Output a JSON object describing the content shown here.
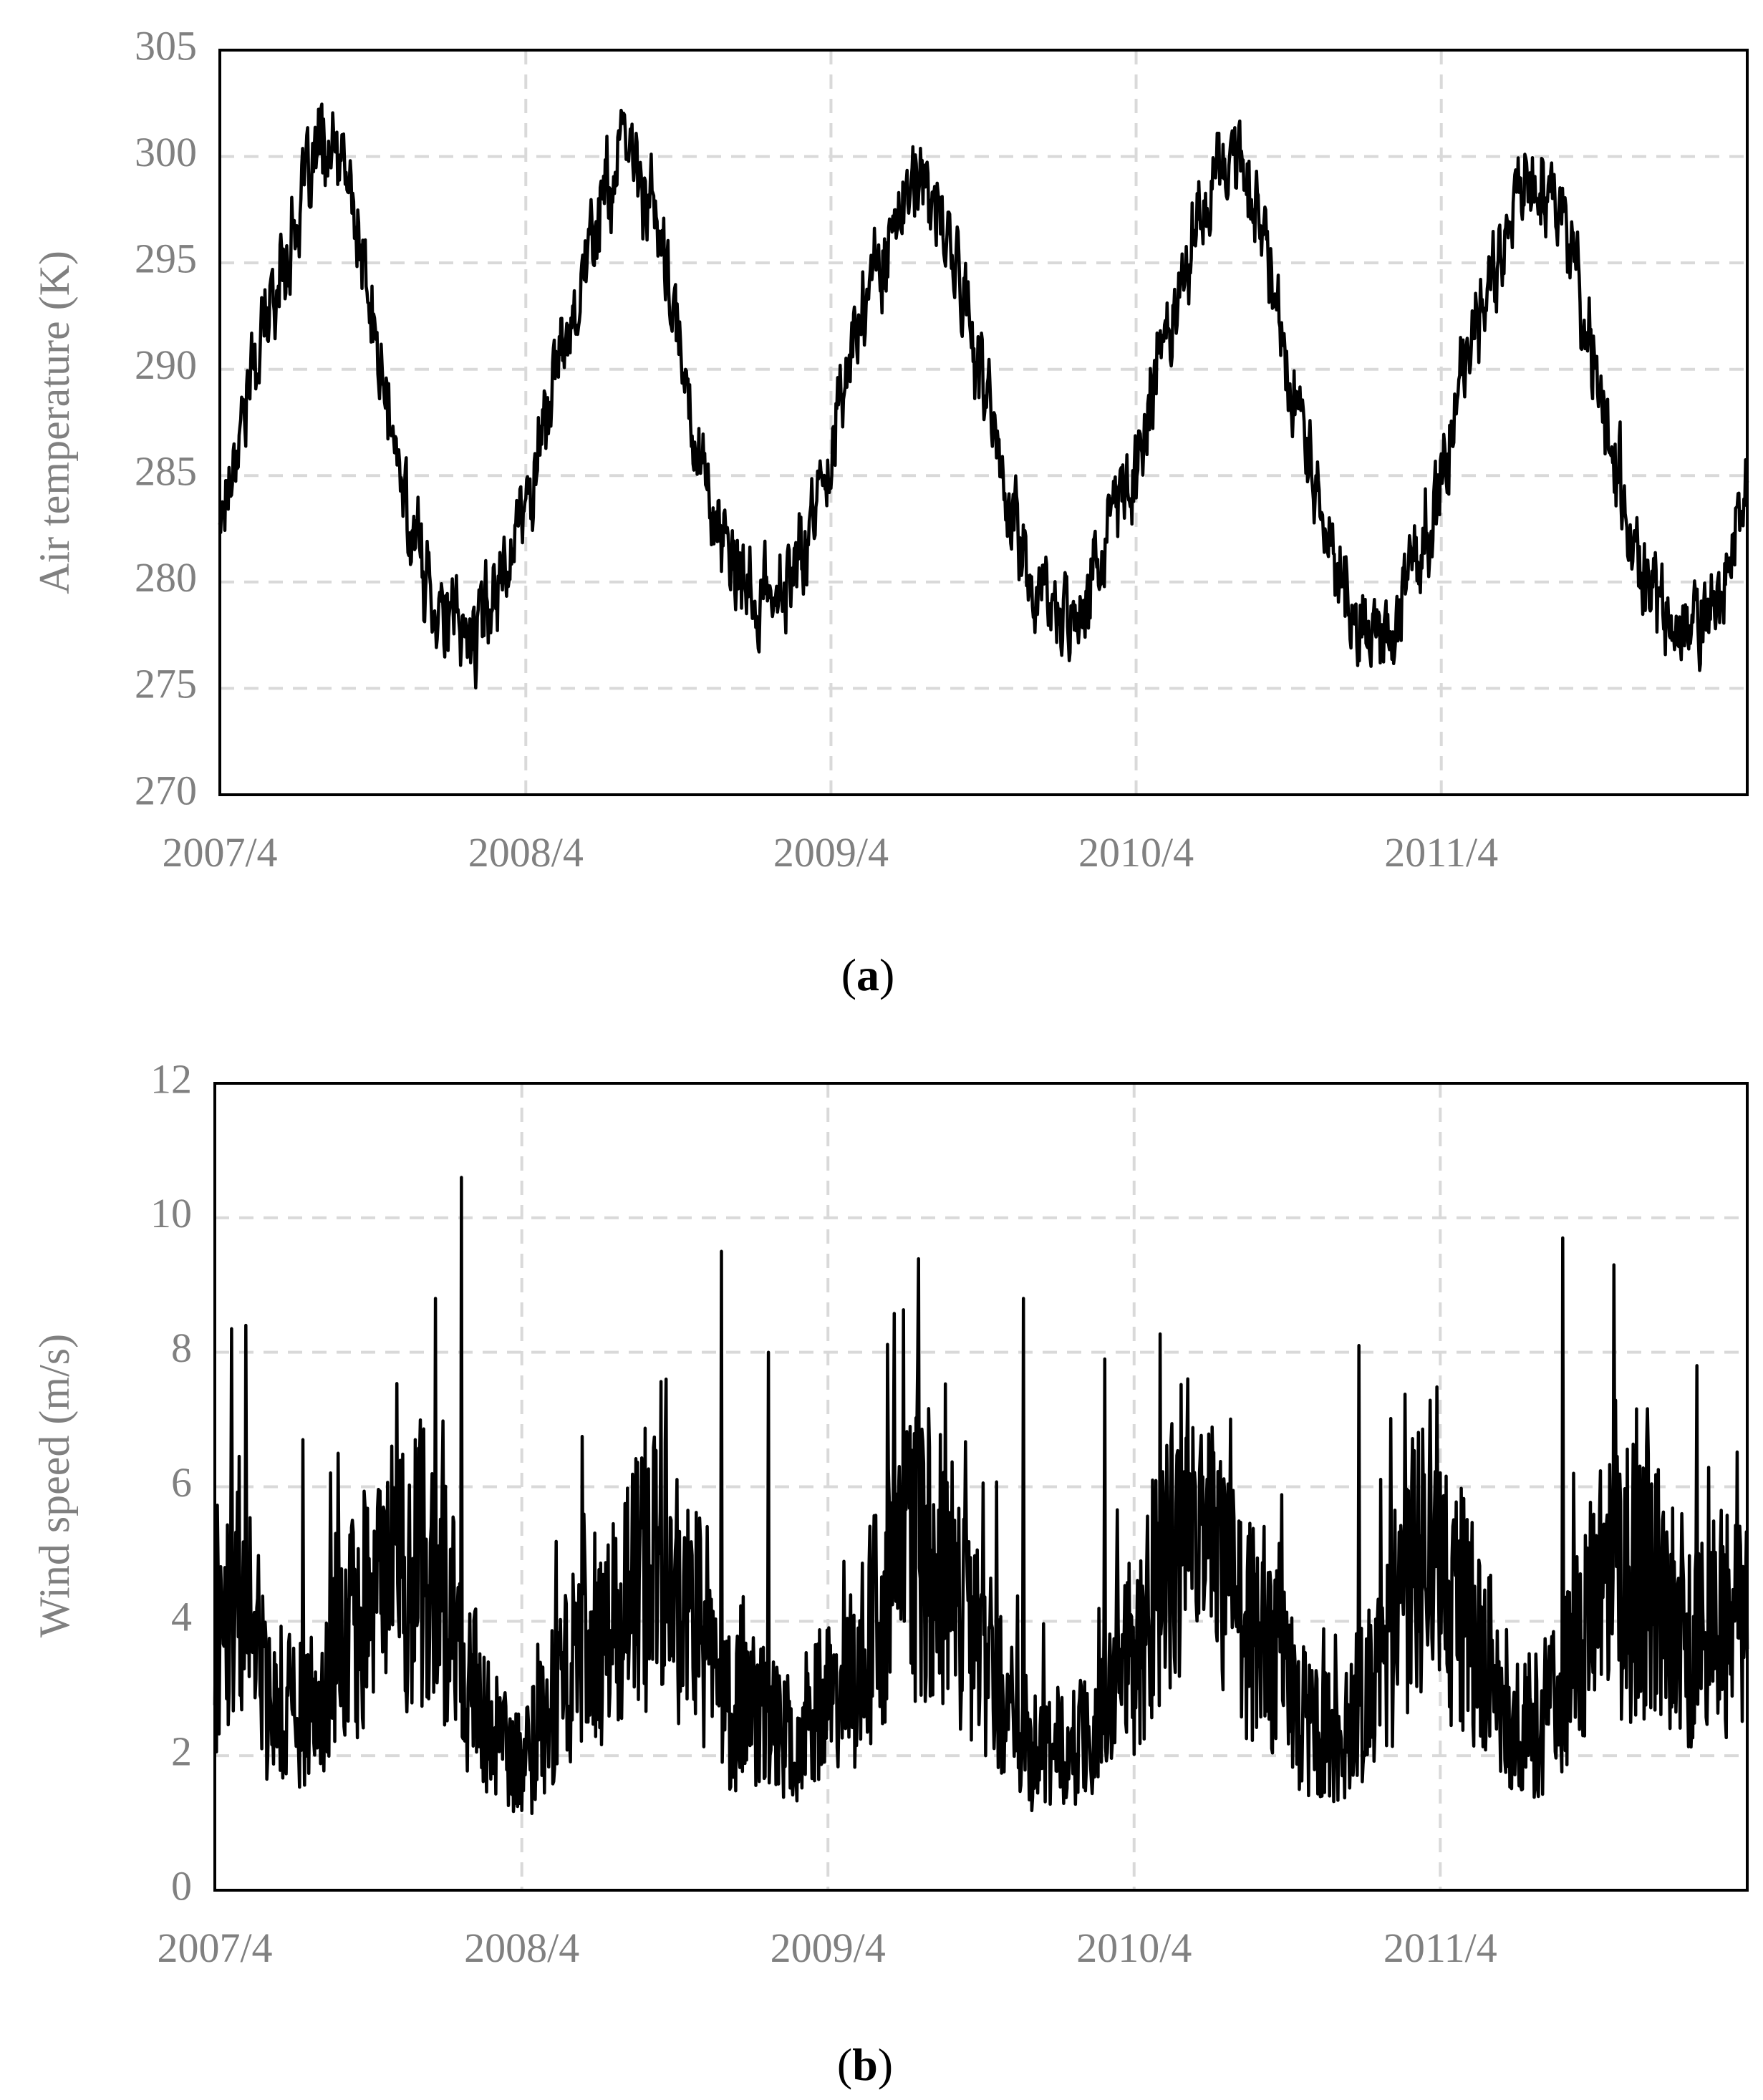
{
  "chart_data": [
    {
      "type": "line",
      "caption": {
        "open": "(",
        "letter": "a",
        "close": ")"
      },
      "ylabel": "Air temperature (K)",
      "xlabel": "",
      "ylim": [
        270,
        305
      ],
      "yticks": [
        270,
        275,
        280,
        285,
        290,
        295,
        300,
        305
      ],
      "xlim": [
        "2007-04-01",
        "2012-04-01"
      ],
      "xticks": [
        {
          "label": "2007/4",
          "date": "2007-04-01"
        },
        {
          "label": "2008/4",
          "date": "2008-04-01"
        },
        {
          "label": "2009/4",
          "date": "2009-04-01"
        },
        {
          "label": "2010/4",
          "date": "2010-04-01"
        },
        {
          "label": "2011/4",
          "date": "2011-04-01"
        }
      ],
      "grid": true,
      "series": [
        {
          "x": [
            "2007-04-01",
            "2007-05-01",
            "2007-06-01",
            "2007-07-01",
            "2007-08-01",
            "2007-09-01",
            "2007-10-01",
            "2007-11-01",
            "2007-12-01",
            "2008-01-01",
            "2008-02-01",
            "2008-03-01",
            "2008-04-01",
            "2008-05-01",
            "2008-06-01",
            "2008-07-01",
            "2008-08-01",
            "2008-09-01",
            "2008-10-01",
            "2008-11-01",
            "2008-12-01",
            "2009-01-01",
            "2009-02-01",
            "2009-03-01",
            "2009-04-01",
            "2009-05-01",
            "2009-06-01",
            "2009-07-01",
            "2009-08-01",
            "2009-09-01",
            "2009-10-01",
            "2009-11-01",
            "2009-12-01",
            "2010-01-01",
            "2010-02-01",
            "2010-03-01",
            "2010-04-01",
            "2010-05-01",
            "2010-06-01",
            "2010-07-01",
            "2010-08-01",
            "2010-09-01",
            "2010-10-01",
            "2010-11-01",
            "2010-12-01",
            "2011-01-01",
            "2011-02-01",
            "2011-03-01",
            "2011-04-01",
            "2011-05-01",
            "2011-06-01",
            "2011-07-01",
            "2011-08-01",
            "2011-09-01",
            "2011-10-01",
            "2011-11-01",
            "2011-12-01",
            "2012-01-01",
            "2012-02-01",
            "2012-03-01",
            "2012-04-01"
          ],
          "values": [
            283.0,
            288.5,
            293.0,
            297.0,
            300.5,
            299.0,
            292.0,
            285.0,
            280.5,
            278.0,
            277.5,
            280.5,
            283.5,
            289.0,
            293.5,
            298.0,
            300.5,
            297.5,
            291.0,
            285.0,
            280.5,
            279.0,
            279.5,
            281.5,
            286.5,
            292.0,
            295.5,
            298.5,
            298.0,
            294.5,
            289.0,
            283.5,
            279.5,
            278.5,
            279.5,
            282.5,
            285.5,
            291.0,
            295.5,
            298.5,
            300.5,
            296.5,
            290.0,
            284.5,
            280.0,
            277.5,
            278.0,
            280.5,
            284.5,
            290.5,
            294.5,
            298.5,
            299.5,
            296.0,
            290.0,
            284.5,
            279.5,
            277.5,
            278.0,
            279.5,
            285.0
          ]
        }
      ]
    },
    {
      "type": "line",
      "caption": {
        "open": "(",
        "letter": "b",
        "close": ")"
      },
      "ylabel": "Wind speed (m/s)",
      "xlabel": "",
      "ylim": [
        0,
        12
      ],
      "yticks": [
        0,
        2,
        4,
        6,
        8,
        10,
        12
      ],
      "xlim": [
        "2007-04-01",
        "2012-04-01"
      ],
      "xticks": [
        {
          "label": "2007/4",
          "date": "2007-04-01"
        },
        {
          "label": "2008/4",
          "date": "2008-04-01"
        },
        {
          "label": "2009/4",
          "date": "2009-04-01"
        },
        {
          "label": "2010/4",
          "date": "2010-04-01"
        },
        {
          "label": "2011/4",
          "date": "2011-04-01"
        }
      ],
      "grid": true,
      "series": [
        {
          "x": [
            "2007-04-01",
            "2007-05-01",
            "2007-06-01",
            "2007-07-01",
            "2007-08-01",
            "2007-09-01",
            "2007-10-01",
            "2007-11-01",
            "2007-12-01",
            "2008-01-01",
            "2008-02-01",
            "2008-03-01",
            "2008-04-01",
            "2008-05-01",
            "2008-06-01",
            "2008-07-01",
            "2008-08-01",
            "2008-09-01",
            "2008-10-01",
            "2008-11-01",
            "2008-12-01",
            "2009-01-01",
            "2009-02-01",
            "2009-03-01",
            "2009-04-01",
            "2009-05-01",
            "2009-06-01",
            "2009-07-01",
            "2009-08-01",
            "2009-09-01",
            "2009-10-01",
            "2009-11-01",
            "2009-12-01",
            "2010-01-01",
            "2010-02-01",
            "2010-03-01",
            "2010-04-01",
            "2010-05-01",
            "2010-06-01",
            "2010-07-01",
            "2010-08-01",
            "2010-09-01",
            "2010-10-01",
            "2010-11-01",
            "2010-12-01",
            "2011-01-01",
            "2011-02-01",
            "2011-03-01",
            "2011-04-01",
            "2011-05-01",
            "2011-06-01",
            "2011-07-01",
            "2011-08-01",
            "2011-09-01",
            "2011-10-01",
            "2011-11-01",
            "2011-12-01",
            "2012-01-01",
            "2012-02-01",
            "2012-03-01",
            "2012-04-01"
          ],
          "values": [
            3.0,
            4.3,
            2.5,
            2.3,
            2.6,
            3.0,
            3.8,
            4.0,
            4.2,
            3.6,
            2.6,
            2.0,
            1.5,
            2.2,
            3.0,
            3.2,
            3.6,
            4.3,
            4.0,
            3.3,
            2.3,
            2.3,
            2.0,
            2.1,
            2.4,
            2.8,
            3.5,
            4.4,
            4.3,
            3.8,
            3.2,
            2.3,
            1.8,
            1.8,
            1.9,
            2.6,
            3.0,
            4.0,
            4.6,
            4.4,
            3.7,
            3.3,
            2.5,
            2.0,
            1.9,
            2.5,
            3.2,
            4.2,
            4.0,
            3.5,
            2.8,
            2.0,
            2.2,
            2.8,
            3.6,
            3.9,
            4.0,
            3.5,
            3.3,
            3.6,
            3.5
          ],
          "peaks": [
            {
              "x": "2007-05-08",
              "y": 8.4
            },
            {
              "x": "2007-07-15",
              "y": 6.7
            },
            {
              "x": "2007-12-20",
              "y": 8.8
            },
            {
              "x": "2008-01-20",
              "y": 10.6
            },
            {
              "x": "2008-09-20",
              "y": 7.6
            },
            {
              "x": "2008-11-25",
              "y": 9.5
            },
            {
              "x": "2009-01-20",
              "y": 8.0
            },
            {
              "x": "2009-11-20",
              "y": 8.8
            },
            {
              "x": "2010-02-25",
              "y": 7.9
            },
            {
              "x": "2010-12-25",
              "y": 8.1
            },
            {
              "x": "2011-08-25",
              "y": 9.7
            },
            {
              "x": "2011-10-25",
              "y": 9.3
            },
            {
              "x": "2012-02-01",
              "y": 7.8
            }
          ]
        }
      ]
    }
  ]
}
